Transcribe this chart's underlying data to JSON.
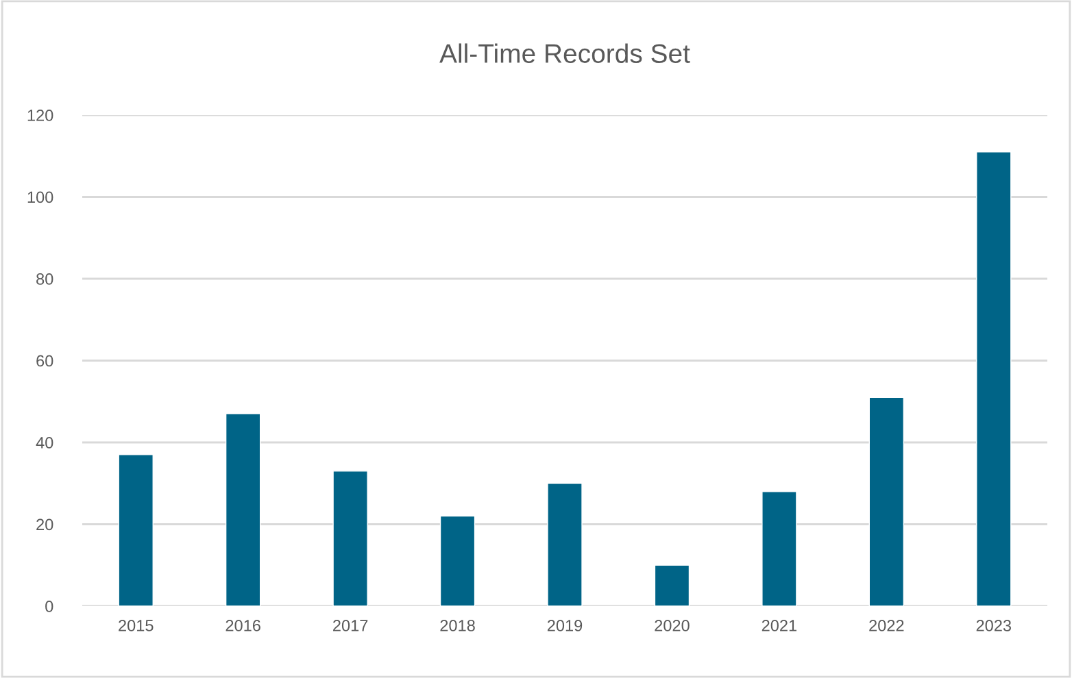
{
  "chart_data": {
    "type": "bar",
    "title": "All-Time Records Set",
    "categories": [
      "2015",
      "2016",
      "2017",
      "2018",
      "2019",
      "2020",
      "2021",
      "2022",
      "2023"
    ],
    "values": [
      37,
      47,
      33,
      22,
      30,
      10,
      28,
      51,
      111
    ],
    "color": "#006487",
    "ylim": [
      0,
      120
    ],
    "yticks": [
      0,
      20,
      40,
      60,
      80,
      100,
      120
    ],
    "grid": "y",
    "legend": false
  }
}
